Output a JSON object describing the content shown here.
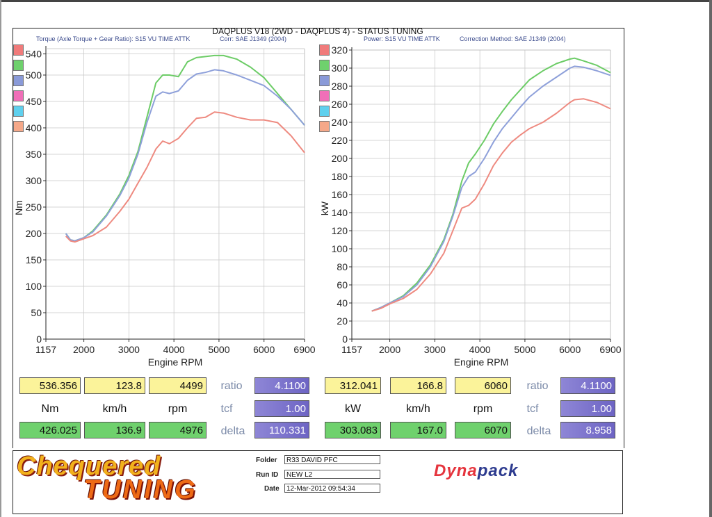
{
  "header": {
    "title": "DAQPLUS V18 (2WD - DAQPLUS 4) - STATUS TUNING",
    "left_subtitle_a": "Torque (Axle Torque + Gear Ratio): S15 VU TIME ATTK",
    "left_subtitle_b": "Corr: SAE J1349 (2004)",
    "right_subtitle_a": "Power: S15 VU TIME ATTK",
    "right_subtitle_b": "Correction Method: SAE J1349 (2004)"
  },
  "legend_swatch_colors": [
    "#f07b7b",
    "#6fd16d",
    "#8a9ad8",
    "#f06fb8",
    "#5fd0ee",
    "#f5a889"
  ],
  "chart_data": [
    {
      "type": "line",
      "title": "Torque",
      "xlabel": "Engine RPM",
      "ylabel": "Nm",
      "xlim": [
        1157,
        6900
      ],
      "ylim": [
        0,
        550
      ],
      "x_ticks": [
        "1157",
        "2000",
        "3000",
        "4000",
        "5000",
        "6000",
        "6900"
      ],
      "y_ticks": [
        "0",
        "50",
        "100",
        "150",
        "200",
        "250",
        "300",
        "350",
        "400",
        "450",
        "500",
        "540"
      ],
      "grid": true,
      "series": [
        {
          "color": "#6ccc66",
          "x": [
            1600,
            1700,
            1800,
            2000,
            2200,
            2500,
            2800,
            3000,
            3200,
            3400,
            3600,
            3750,
            3900,
            4100,
            4300,
            4500,
            4700,
            4900,
            5100,
            5400,
            5700,
            6000,
            6300,
            6600,
            6900
          ],
          "y": [
            200,
            188,
            186,
            192,
            205,
            235,
            275,
            310,
            355,
            420,
            485,
            500,
            500,
            497,
            525,
            533,
            535,
            537,
            537,
            530,
            515,
            495,
            465,
            435,
            405
          ]
        },
        {
          "color": "#8ea0da",
          "x": [
            1600,
            1700,
            1800,
            2000,
            2200,
            2500,
            2800,
            3000,
            3200,
            3400,
            3600,
            3750,
            3900,
            4100,
            4300,
            4500,
            4700,
            4900,
            5100,
            5400,
            5700,
            6000,
            6300,
            6600,
            6900
          ],
          "y": [
            200,
            188,
            186,
            192,
            203,
            233,
            272,
            305,
            350,
            410,
            460,
            468,
            465,
            470,
            490,
            502,
            505,
            510,
            508,
            500,
            490,
            480,
            460,
            435,
            405
          ]
        },
        {
          "color": "#ee8a80",
          "x": [
            1600,
            1700,
            1800,
            2000,
            2200,
            2500,
            2800,
            3000,
            3200,
            3400,
            3600,
            3750,
            3900,
            4100,
            4300,
            4500,
            4700,
            4900,
            5100,
            5400,
            5700,
            6000,
            6300,
            6600,
            6900
          ],
          "y": [
            195,
            186,
            184,
            190,
            196,
            212,
            242,
            265,
            295,
            325,
            360,
            375,
            370,
            380,
            400,
            418,
            420,
            430,
            428,
            420,
            415,
            415,
            410,
            385,
            353
          ]
        }
      ]
    },
    {
      "type": "line",
      "title": "Power",
      "xlabel": "Engine RPM",
      "ylabel": "kW",
      "xlim": [
        1157,
        6900
      ],
      "ylim": [
        0,
        320
      ],
      "x_ticks": [
        "1157",
        "2000",
        "3000",
        "4000",
        "5000",
        "6000",
        "6900"
      ],
      "y_ticks": [
        "0",
        "20",
        "40",
        "60",
        "80",
        "100",
        "120",
        "140",
        "160",
        "180",
        "200",
        "220",
        "240",
        "260",
        "280",
        "300",
        "320"
      ],
      "grid": true,
      "series": [
        {
          "color": "#6ccc66",
          "x": [
            1600,
            1800,
            2000,
            2300,
            2600,
            2900,
            3200,
            3400,
            3600,
            3750,
            3900,
            4100,
            4300,
            4500,
            4700,
            4900,
            5100,
            5400,
            5700,
            6000,
            6100,
            6300,
            6600,
            6900
          ],
          "y": [
            31,
            35,
            40,
            48,
            62,
            82,
            110,
            138,
            175,
            195,
            205,
            220,
            238,
            252,
            265,
            276,
            287,
            297,
            305,
            310,
            311,
            308,
            303,
            295
          ]
        },
        {
          "color": "#8ea0da",
          "x": [
            1600,
            1800,
            2000,
            2300,
            2600,
            2900,
            3200,
            3400,
            3600,
            3750,
            3900,
            4100,
            4300,
            4500,
            4700,
            4900,
            5100,
            5400,
            5700,
            6000,
            6100,
            6300,
            6600,
            6900
          ],
          "y": [
            31,
            35,
            40,
            47,
            60,
            80,
            108,
            136,
            168,
            180,
            185,
            200,
            218,
            233,
            245,
            257,
            268,
            280,
            290,
            300,
            302,
            301,
            297,
            292
          ]
        },
        {
          "color": "#ee8a80",
          "x": [
            1600,
            1800,
            2000,
            2300,
            2600,
            2900,
            3200,
            3400,
            3600,
            3750,
            3900,
            4100,
            4300,
            4500,
            4700,
            4900,
            5100,
            5400,
            5700,
            6000,
            6100,
            6300,
            6600,
            6900
          ],
          "y": [
            31,
            34,
            39,
            45,
            55,
            72,
            95,
            120,
            145,
            148,
            155,
            172,
            192,
            206,
            218,
            226,
            233,
            240,
            250,
            262,
            265,
            266,
            262,
            255
          ]
        }
      ]
    }
  ],
  "readouts": {
    "left": {
      "max_value": "536.356",
      "max_kmh": "123.8",
      "max_rpm": "4499",
      "ratio_label": "ratio",
      "ratio": "4.1100",
      "unit_main": "Nm",
      "unit_speed": "km/h",
      "unit_rpm": "rpm",
      "tcf_label": "tcf",
      "tcf": "1.00",
      "cur_value": "426.025",
      "cur_kmh": "136.9",
      "cur_rpm": "4976",
      "delta_label": "delta",
      "delta": "110.331"
    },
    "right": {
      "max_value": "312.041",
      "max_kmh": "166.8",
      "max_rpm": "6060",
      "ratio_label": "ratio",
      "ratio": "4.1100",
      "unit_main": "kW",
      "unit_speed": "km/h",
      "unit_rpm": "rpm",
      "tcf_label": "tcf",
      "tcf": "1.00",
      "cur_value": "303.083",
      "cur_kmh": "167.0",
      "cur_rpm": "6070",
      "delta_label": "delta",
      "delta": "8.958"
    }
  },
  "footer": {
    "logo_line1": "Chequered",
    "logo_line2": "TUNING",
    "folder_label": "Folder",
    "folder": "R33 DAVID PFC",
    "runid_label": "Run ID",
    "runid": "NEW L2",
    "date_label": "Date",
    "date": "12-Mar-2012  09:54:34",
    "brand_a": "Dyna",
    "brand_b": "pack"
  }
}
